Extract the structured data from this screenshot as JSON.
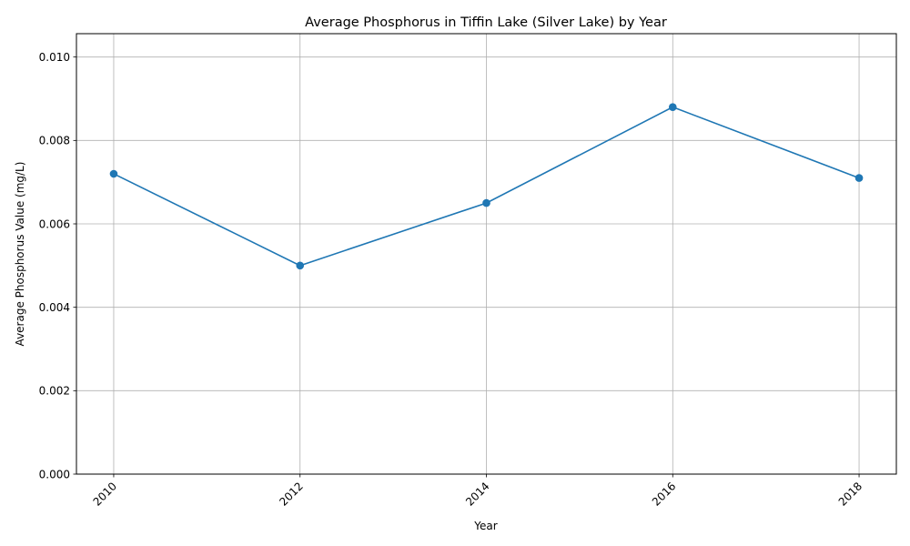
{
  "chart_data": {
    "type": "line",
    "title": "Average Phosphorus in Tiffin Lake (Silver Lake) by Year",
    "xlabel": "Year",
    "ylabel": "Average Phosphorus Value (mg/L)",
    "x": [
      2010,
      2012,
      2014,
      2016,
      2018
    ],
    "series": [
      {
        "values": [
          0.0072,
          0.005,
          0.0065,
          0.0088,
          0.0071
        ]
      }
    ],
    "xlim": [
      2009.6,
      2018.4
    ],
    "ylim": [
      0,
      0.01056
    ],
    "xticks": [
      "2010",
      "2012",
      "2014",
      "2016",
      "2018"
    ],
    "yticks": [
      "0.000",
      "0.002",
      "0.004",
      "0.006",
      "0.008",
      "0.010"
    ],
    "grid": true,
    "legend": "none",
    "line_color": "#1f77b4"
  }
}
